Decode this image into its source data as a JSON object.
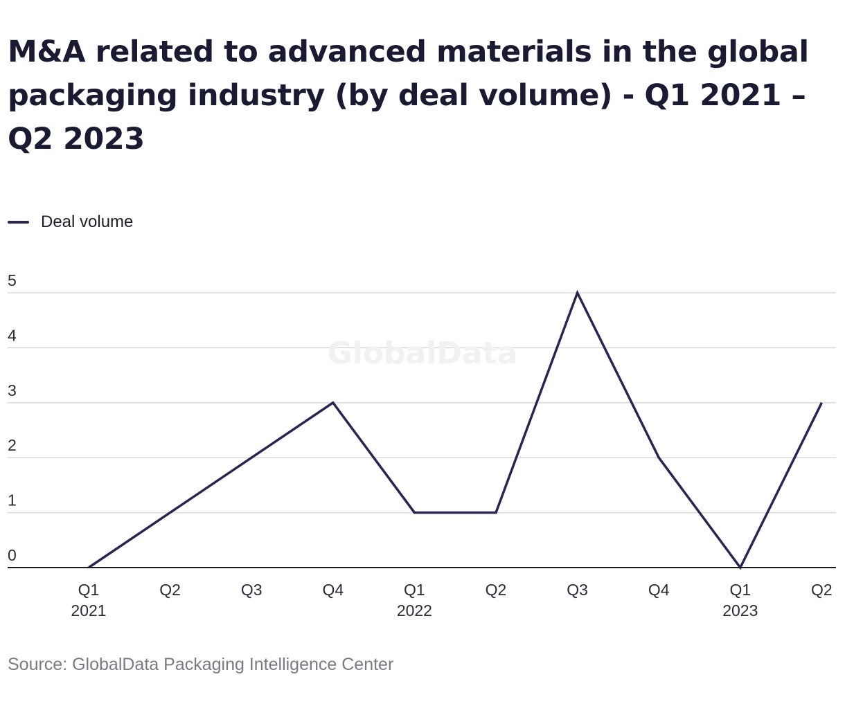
{
  "chart_data": {
    "type": "line",
    "title": "M&A related to advanced materials in the global packaging industry (by deal volume) - Q1 2021 – Q2 2023",
    "categories": [
      "Q1",
      "Q2",
      "Q3",
      "Q4",
      "Q1",
      "Q2",
      "Q3",
      "Q4",
      "Q1",
      "Q2"
    ],
    "year_labels": [
      "2021",
      "",
      "",
      "",
      "2022",
      "",
      "",
      "",
      "2023",
      ""
    ],
    "series": [
      {
        "name": "Deal volume",
        "values": [
          0,
          1,
          2,
          3,
          1,
          1,
          5,
          2,
          0,
          3
        ],
        "color": "#2d2352"
      }
    ],
    "y_ticks": [
      "0",
      "1",
      "2",
      "3",
      "4",
      "5"
    ],
    "ylim": [
      0,
      5
    ],
    "grid": true,
    "legend_position": "top-left",
    "watermark": "GlobalData",
    "source": "Source: GlobalData Packaging Intelligence Center"
  }
}
